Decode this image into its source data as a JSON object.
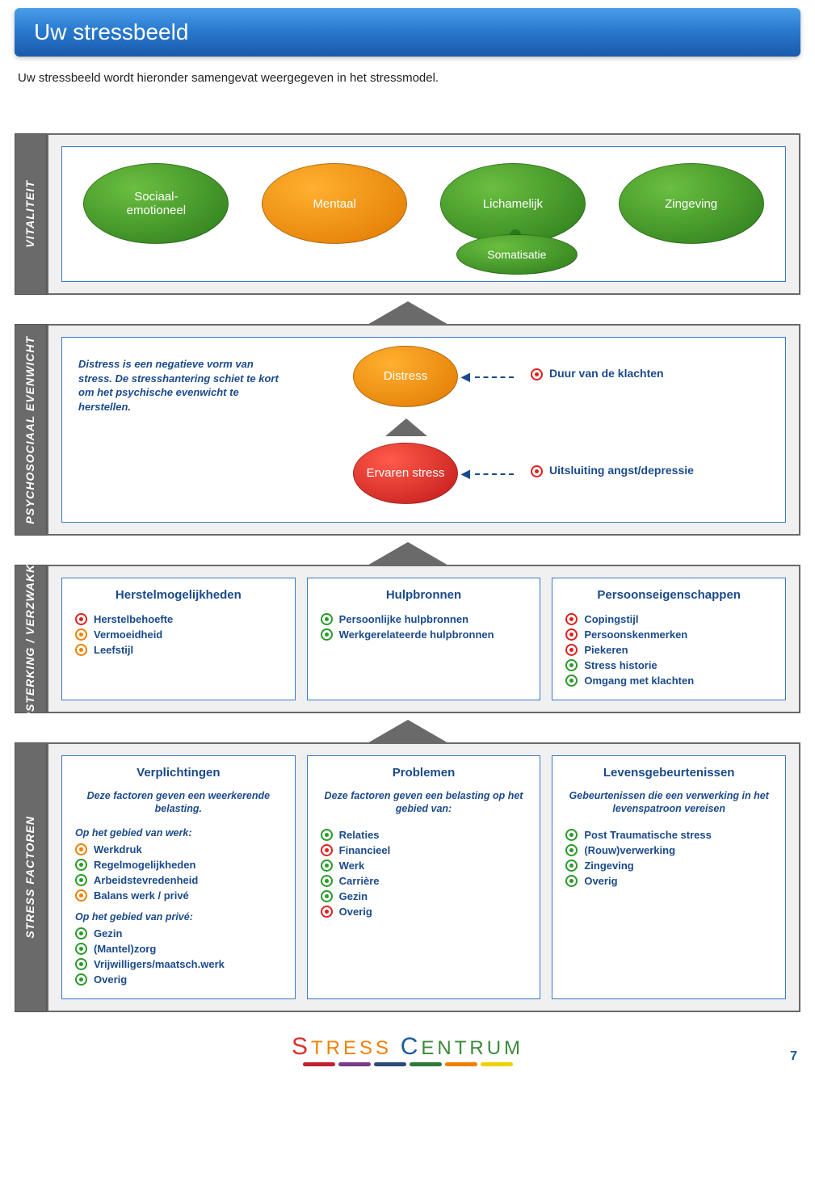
{
  "page": {
    "title": "Uw stressbeeld",
    "intro": "Uw stressbeeld wordt hieronder samengevat weergegeven in het stressmodel.",
    "number": "7"
  },
  "colors": {
    "green_hi": "#6abf40",
    "green_lo": "#2a7a1a",
    "orange_hi": "#ffb030",
    "orange_lo": "#e07800",
    "red_hi": "#ff5a4a",
    "red_lo": "#c01818",
    "panel_border": "#3a78c8",
    "sidebar": "#6a6a6a",
    "text_blue": "#1a4a8a",
    "bullet_red": "#e02020",
    "bullet_orange": "#f08000",
    "bullet_green": "#2a9a2a"
  },
  "vitality": {
    "tab": "VITALITEIT",
    "items": [
      {
        "label": "Sociaal-\nemotioneel",
        "color": "green"
      },
      {
        "label": "Mentaal",
        "color": "orange"
      },
      {
        "label": "Lichamelijk",
        "color": "green",
        "sub": {
          "label": "Somatisatie",
          "color": "green"
        }
      },
      {
        "label": "Zingeving",
        "color": "green"
      }
    ]
  },
  "psychosocial": {
    "tab": "PSYCHOSOCIAAL EVENWICHT",
    "description": "Distress is een negatieve vorm van stress. De stresshantering schiet te kort om het psychische evenwicht te herstellen.",
    "nodes": [
      {
        "label": "Distress",
        "color": "orange",
        "note": "Duur van de klachten",
        "note_bullet": "red"
      },
      {
        "label": "Ervaren stress",
        "color": "red",
        "note": "Uitsluiting angst/depressie",
        "note_bullet": "red"
      }
    ]
  },
  "versterking": {
    "tab": "VERSTERKING / VERZWAKKING",
    "columns": [
      {
        "title": "Herstelmogelijkheden",
        "items": [
          {
            "label": "Herstelbehoefte",
            "bullet": "red"
          },
          {
            "label": "Vermoeidheid",
            "bullet": "orange"
          },
          {
            "label": "Leefstijl",
            "bullet": "orange"
          }
        ]
      },
      {
        "title": "Hulpbronnen",
        "items": [
          {
            "label": "Persoonlijke hulpbronnen",
            "bullet": "green"
          },
          {
            "label": "Werkgerelateerde hulpbronnen",
            "bullet": "green"
          }
        ]
      },
      {
        "title": "Persoonseigenschappen",
        "items": [
          {
            "label": "Copingstijl",
            "bullet": "red"
          },
          {
            "label": "Persoonskenmerken",
            "bullet": "red"
          },
          {
            "label": "Piekeren",
            "bullet": "red"
          },
          {
            "label": "Stress historie",
            "bullet": "green"
          },
          {
            "label": "Omgang met klachten",
            "bullet": "green"
          }
        ]
      }
    ]
  },
  "stressfactoren": {
    "tab": "STRESS FACTOREN",
    "columns": [
      {
        "title": "Verplichtingen",
        "subdesc": "Deze factoren geven een weerkerende belasting.",
        "groups": [
          {
            "label": "Op het gebied van werk:",
            "items": [
              {
                "label": "Werkdruk",
                "bullet": "orange"
              },
              {
                "label": "Regelmogelijkheden",
                "bullet": "green"
              },
              {
                "label": "Arbeidstevredenheid",
                "bullet": "green"
              },
              {
                "label": "Balans werk / privé",
                "bullet": "orange"
              }
            ]
          },
          {
            "label": "Op het gebied van privé:",
            "items": [
              {
                "label": "Gezin",
                "bullet": "green"
              },
              {
                "label": "(Mantel)zorg",
                "bullet": "green"
              },
              {
                "label": "Vrijwilligers/maatsch.werk",
                "bullet": "green"
              },
              {
                "label": "Overig",
                "bullet": "green"
              }
            ]
          }
        ]
      },
      {
        "title": "Problemen",
        "subdesc": "Deze factoren geven een belasting op het gebied van:",
        "groups": [
          {
            "label": "",
            "items": [
              {
                "label": "Relaties",
                "bullet": "green"
              },
              {
                "label": "Financieel",
                "bullet": "red"
              },
              {
                "label": "Werk",
                "bullet": "green"
              },
              {
                "label": "Carrière",
                "bullet": "green"
              },
              {
                "label": "Gezin",
                "bullet": "green"
              },
              {
                "label": "Overig",
                "bullet": "red"
              }
            ]
          }
        ]
      },
      {
        "title": "Levensgebeurtenissen",
        "subdesc": "Gebeurtenissen die een verwerking in het levenspatroon vereisen",
        "groups": [
          {
            "label": "",
            "items": [
              {
                "label": "Post Traumatische stress",
                "bullet": "green"
              },
              {
                "label": "(Rouw)verwerking",
                "bullet": "green"
              },
              {
                "label": "Zingeving",
                "bullet": "green"
              },
              {
                "label": "Overig",
                "bullet": "green"
              }
            ]
          }
        ]
      }
    ]
  },
  "footer": {
    "brand_s": "S",
    "brand_tress": "TRESS ",
    "brand_c": "C",
    "brand_entrum": "ENTRUM",
    "strip_colors": [
      "#c02030",
      "#7a3a8a",
      "#2a4a7a",
      "#2a7a3a",
      "#f08000",
      "#f0d000"
    ]
  }
}
